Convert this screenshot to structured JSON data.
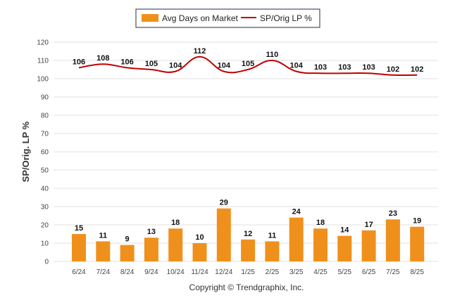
{
  "legend": {
    "bar_label": "Avg Days on Market",
    "line_label": "SP/Orig LP %"
  },
  "copyright": "Copyright © Trendgraphix, Inc.",
  "chart_data": {
    "type": "bar",
    "categories": [
      "6/24",
      "7/24",
      "8/24",
      "9/24",
      "10/24",
      "11/24",
      "12/24",
      "1/25",
      "2/25",
      "3/25",
      "4/25",
      "5/25",
      "6/25",
      "7/25",
      "8/25"
    ],
    "series": [
      {
        "name": "Avg Days on Market",
        "type": "bar",
        "color": "#f0901c",
        "values": [
          15,
          11,
          9,
          13,
          18,
          10,
          29,
          12,
          11,
          24,
          18,
          14,
          17,
          23,
          19
        ]
      },
      {
        "name": "SP/Orig LP %",
        "type": "line",
        "color": "#c00000",
        "values": [
          106,
          108,
          106,
          105,
          104,
          112,
          104,
          105,
          110,
          104,
          103,
          103,
          103,
          102,
          102
        ]
      }
    ],
    "ylabel": "SP/Orig. LP %",
    "xlabel": "",
    "ylim": [
      0,
      120
    ],
    "yticks": [
      0,
      10,
      20,
      30,
      40,
      50,
      60,
      70,
      80,
      90,
      100,
      110,
      120
    ],
    "grid": true,
    "legend_position": "top-center"
  }
}
